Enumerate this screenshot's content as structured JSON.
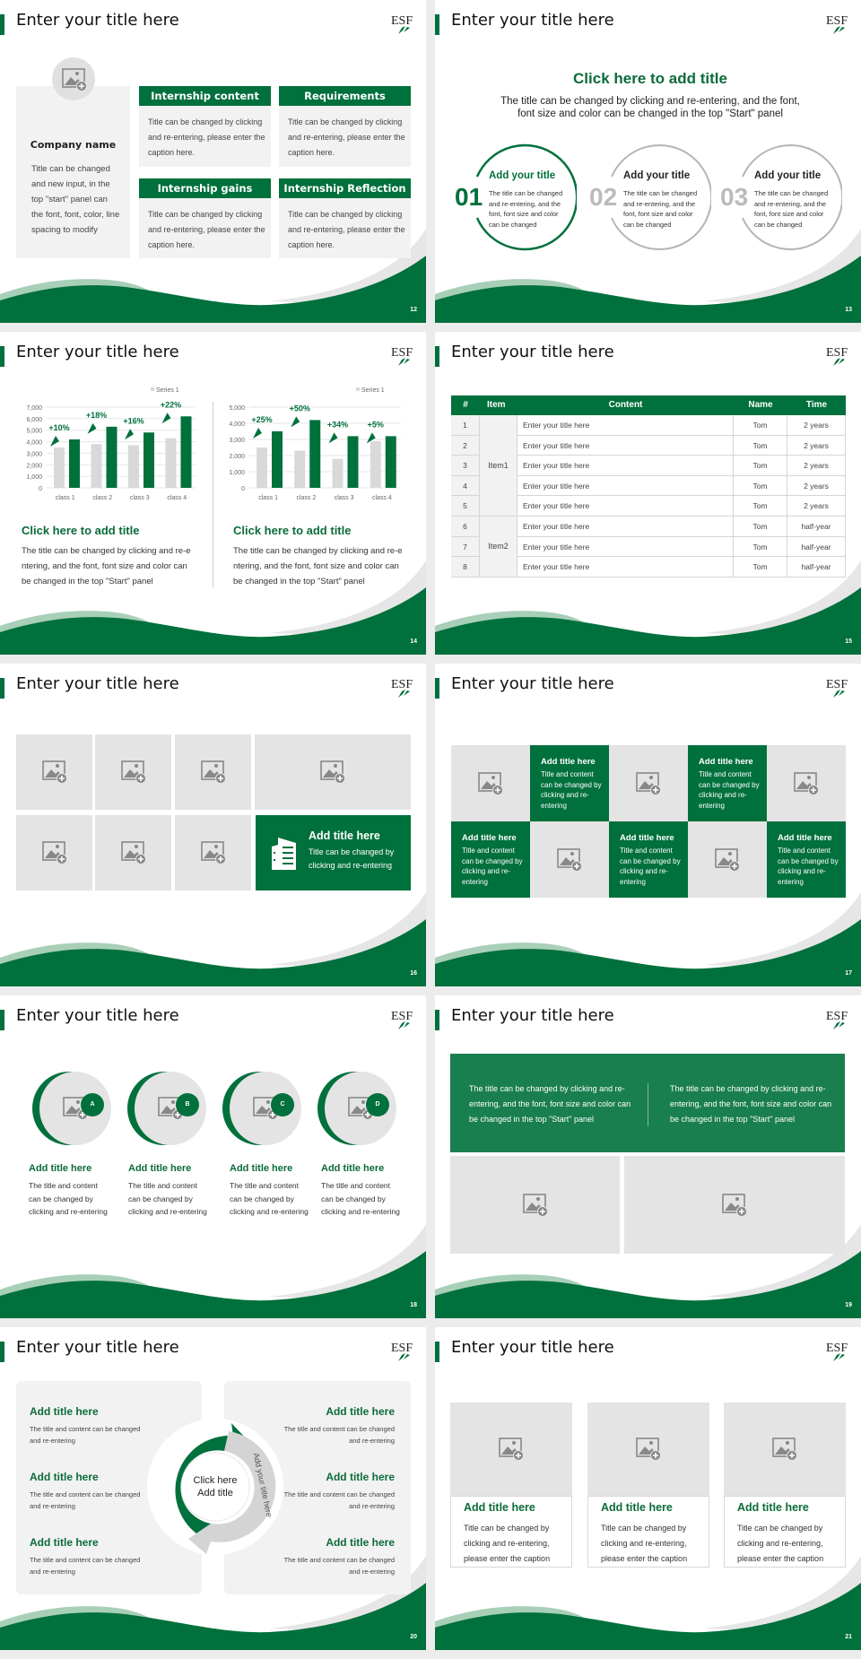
{
  "colors": {
    "brand_green": "#00703c",
    "light_green": "#a8cfb8",
    "panel_grey": "#f2f2f2",
    "placeholder_grey": "#e5e4e4",
    "box_green": "#1a7f4e"
  },
  "logo_text": "ESF",
  "slides": [
    {
      "title": "Enter your title here",
      "page": "12",
      "company_name": "Company name",
      "company_desc": "Title can be changed and new input, in the top \"start\" panel can the font, font, color, line spacing to modify",
      "boxes": [
        {
          "header": "Internship content",
          "body": "Title can be changed by clicking and re-entering, please enter the caption here."
        },
        {
          "header": "Requirements",
          "body": "Title can be changed by clicking and re-entering, please enter the caption here."
        },
        {
          "header": "Internship gains",
          "body": "Title can be changed by clicking and re-entering, please enter the caption here."
        },
        {
          "header": "Internship Reflection",
          "body": "Title can be changed by clicking and re-entering, please enter the caption here."
        }
      ]
    },
    {
      "title": "Enter your title here",
      "page": "13",
      "heading": "Click here to add title",
      "subtitle_1": "The title can be changed by clicking and re-entering, and the font,",
      "subtitle_2": "font size and color can be changed in the top \"Start\" panel",
      "items": [
        {
          "num": "01",
          "title": "Add your title",
          "body": "The title can be changed and re-entering, and the font, font size and color can be changed"
        },
        {
          "num": "02",
          "title": "Add your title",
          "body": "The title can be changed and re-entering, and the font, font size and color can be changed"
        },
        {
          "num": "03",
          "title": "Add your title",
          "body": "The title can be changed and re-entering, and the font, font size and color can be changed"
        }
      ]
    },
    {
      "title": "Enter your title here",
      "page": "14",
      "blocks": [
        {
          "title": "Click here to add title",
          "body": "The title can be changed by clicking and re-entering, and the font, font size and color can be changed in the top \"Start\" panel"
        },
        {
          "title": "Click here to add title",
          "body": "The title can be changed by clicking and re-entering, and the font, font size and color can be changed in the top \"Start\" panel"
        }
      ]
    },
    {
      "title": "Enter your title here",
      "page": "15",
      "table": {
        "headers": [
          "#",
          "Item",
          "Content",
          "Name",
          "Time"
        ],
        "groups": [
          "Item1",
          "Item2"
        ],
        "rows": [
          [
            "1",
            "Enter your title here",
            "Tom",
            "2 years"
          ],
          [
            "2",
            "Enter your title here",
            "Tom",
            "2 years"
          ],
          [
            "3",
            "Enter your title here",
            "Tom",
            "2 years"
          ],
          [
            "4",
            "Enter your title here",
            "Tom",
            "2 years"
          ],
          [
            "5",
            "Enter your title here",
            "Tom",
            "2 years"
          ],
          [
            "6",
            "Enter your title here",
            "Tom",
            "half-year"
          ],
          [
            "7",
            "Enter your title here",
            "Tom",
            "half-year"
          ],
          [
            "8",
            "Enter your title here",
            "Tom",
            "half-year"
          ]
        ]
      }
    },
    {
      "title": "Enter your title here",
      "page": "16",
      "tile_title": "Add title here",
      "tile_body_1": "Title can be changed by",
      "tile_body_2": "clicking and re-entering"
    },
    {
      "title": "Enter your title here",
      "page": "17",
      "tiles": [
        {
          "title": "Add title here",
          "body": "Title and content can be changed by clicking and re-entering"
        },
        {
          "title": "Add title here",
          "body": "Title and content can be changed by clicking and re-entering"
        },
        {
          "title": "Add title here",
          "body": "Title and content can be changed by clicking and re-entering"
        },
        {
          "title": "Add title here",
          "body": "Title and content can be changed by clicking and re-entering"
        },
        {
          "title": "Add title here",
          "body": "Title and content can be changed by clicking and re-entering"
        }
      ]
    },
    {
      "title": "Enter your title here",
      "page": "18",
      "items": [
        {
          "badge": "A",
          "title": "Add title here",
          "body": "The title and content can be changed by clicking and re-entering"
        },
        {
          "badge": "B",
          "title": "Add title here",
          "body": "The title and content can be changed by clicking and re-entering"
        },
        {
          "badge": "C",
          "title": "Add title here",
          "body": "The title and content can be changed by clicking and re-entering"
        },
        {
          "badge": "D",
          "title": "Add title here",
          "body": "The title and content can be changed by clicking and re-entering"
        }
      ]
    },
    {
      "title": "Enter your title here",
      "page": "19",
      "texts": [
        "The title can be changed by clicking and re-entering, and the font, font size and color can be changed in the top \"Start\" panel",
        "The title can be changed by clicking and re-entering, and the font, font size and color can be changed in the top \"Start\" panel"
      ]
    },
    {
      "title": "Enter your title here",
      "page": "20",
      "center_1": "Click here",
      "center_2": "Add title",
      "arrow_left": "Add your title here",
      "arrow_right": "Add your title here",
      "left": [
        {
          "title": "Add title here",
          "body": "The title and content can be changed and re-entering"
        },
        {
          "title": "Add title here",
          "body": "The title and content can be changed and re-entering"
        },
        {
          "title": "Add title here",
          "body": "The title and content can be changed and re-entering"
        }
      ],
      "right": [
        {
          "title": "Add title here",
          "body": "The title and content can be changed and re-entering"
        },
        {
          "title": "Add title here",
          "body": "The title and content can be changed and re-entering"
        },
        {
          "title": "Add title here",
          "body": "The title and content can be changed and re-entering"
        }
      ]
    },
    {
      "title": "Enter your title here",
      "page": "21",
      "cards": [
        {
          "title": "Add title here",
          "body": "Title can be changed by clicking and re-entering, please enter the caption"
        },
        {
          "title": "Add title here",
          "body": "Title can be changed by clicking and re-entering, please enter the caption"
        },
        {
          "title": "Add title here",
          "body": "Title can be changed by clicking and re-entering, please enter the caption"
        }
      ]
    }
  ],
  "chart_data": [
    {
      "type": "bar",
      "legend": "Series 1",
      "legend_position": "top-right",
      "categories": [
        "class 1",
        "class 2",
        "class 3",
        "class 4"
      ],
      "series": [
        {
          "values": [
            3500,
            3800,
            3700,
            4300
          ],
          "color": "#d9d9d9"
        },
        {
          "values": [
            4200,
            5300,
            4800,
            6200
          ],
          "color": "#00703c"
        }
      ],
      "annotations": [
        "+10%",
        "+18%",
        "+16%",
        "+22%"
      ],
      "yticks": [
        "0",
        "1,000",
        "2,000",
        "3,000",
        "4,000",
        "5,000",
        "6,000",
        "7,000"
      ],
      "ylim": [
        0,
        7000
      ],
      "grid": true
    },
    {
      "type": "bar",
      "legend": "Series 1",
      "legend_position": "top-right",
      "categories": [
        "class 1",
        "class 2",
        "class 3",
        "class 4"
      ],
      "series": [
        {
          "values": [
            2500,
            2300,
            1800,
            2900
          ],
          "color": "#d9d9d9"
        },
        {
          "values": [
            3500,
            4200,
            3200,
            3200
          ],
          "color": "#00703c"
        }
      ],
      "annotations": [
        "+25%",
        "+50%",
        "+34%",
        "+5%"
      ],
      "yticks": [
        "0",
        "1,000",
        "2,000",
        "3,000",
        "4,000",
        "5,000"
      ],
      "ylim": [
        0,
        5000
      ],
      "grid": true
    }
  ]
}
